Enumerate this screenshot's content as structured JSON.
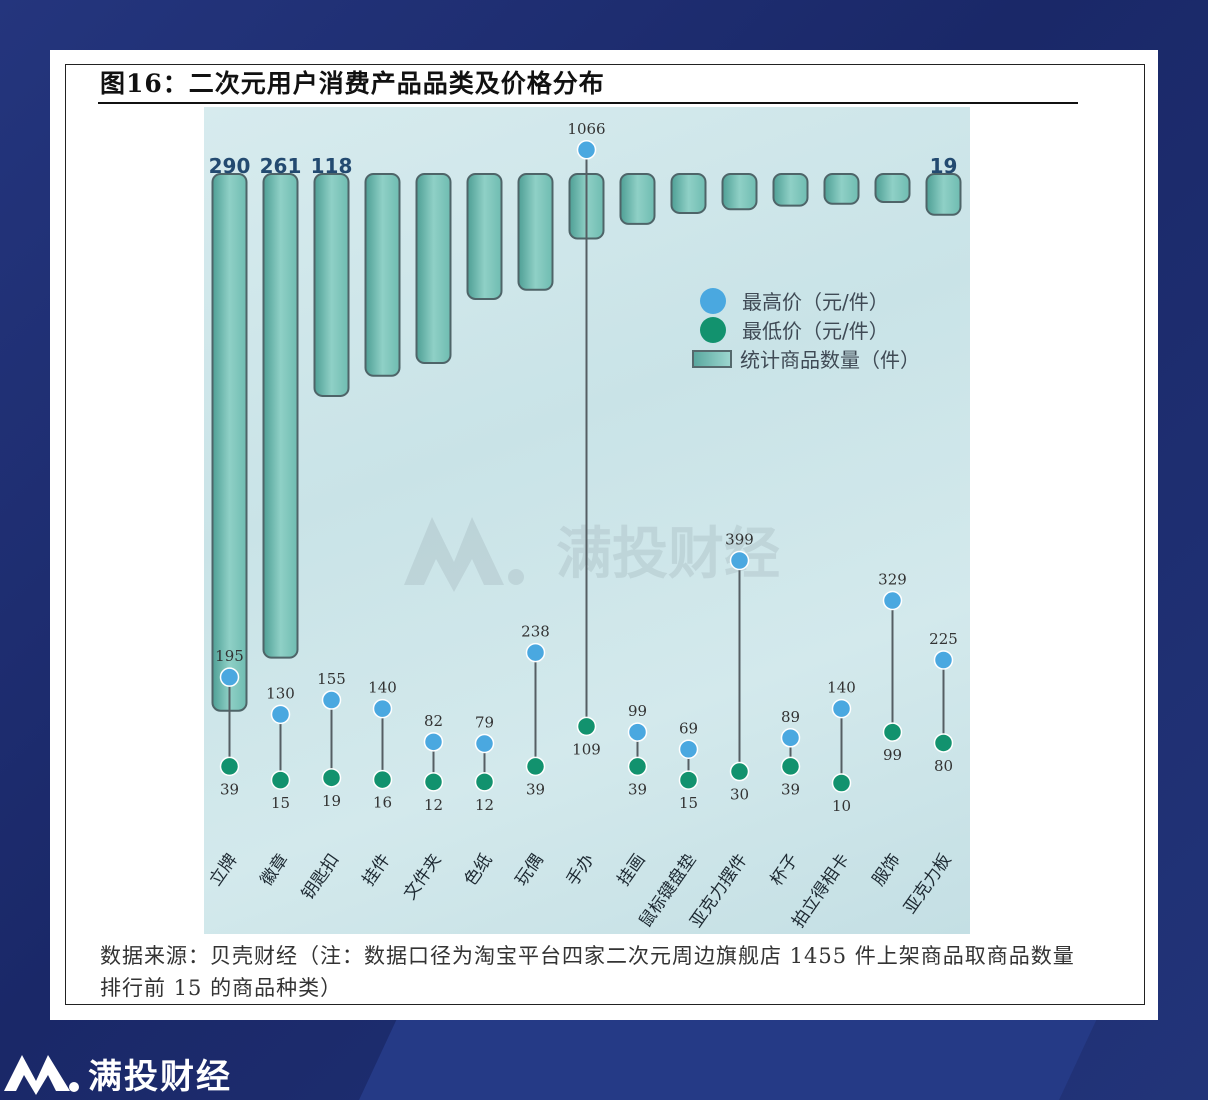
{
  "figure_title": "图16：二次元用户消费产品品类及价格分布",
  "source_note": "数据来源：贝壳财经（注：数据口径为淘宝平台四家二次元周边旗舰店 1455 件上架商品取商品数量排行前 15 的商品种类）",
  "watermark_text": "满投财经",
  "brand_name": "满投财经",
  "colors": {
    "max_price": "#4aa8e0",
    "min_price": "#12926e",
    "bar_fill": "#7cc2b8",
    "bar_border": "#4e6468",
    "bar_label": "#234a70"
  },
  "chart_data": {
    "type": "bar",
    "categories": [
      "立牌",
      "徽章",
      "钥匙扣",
      "挂件",
      "文件夹",
      "色纸",
      "玩偶",
      "手办",
      "挂画",
      "鼠标键盘垫",
      "亚克力摆件",
      "杯子",
      "拍立得相卡",
      "服饰",
      "亚克力板"
    ],
    "series": [
      {
        "name": "统计商品数量（件）",
        "values": [
          290,
          261,
          118,
          107,
          100,
          65,
          60,
          32,
          24,
          18,
          16,
          14,
          13,
          12,
          19
        ]
      },
      {
        "name": "最高价（元/件）",
        "values": [
          195,
          130,
          155,
          140,
          82,
          79,
          238,
          1066,
          99,
          69,
          399,
          89,
          140,
          329,
          225
        ]
      },
      {
        "name": "最低价（元/件）",
        "values": [
          39,
          15,
          19,
          16,
          12,
          12,
          39,
          109,
          39,
          15,
          30,
          39,
          10,
          99,
          80
        ]
      }
    ],
    "bar_labels_shown": {
      "0": "290",
      "1": "261",
      "2": "118",
      "14": "19"
    },
    "legend": [
      "最高价（元/件）",
      "最低价（元/件）",
      "统计商品数量（件）"
    ],
    "legend_position": "right-middle"
  }
}
